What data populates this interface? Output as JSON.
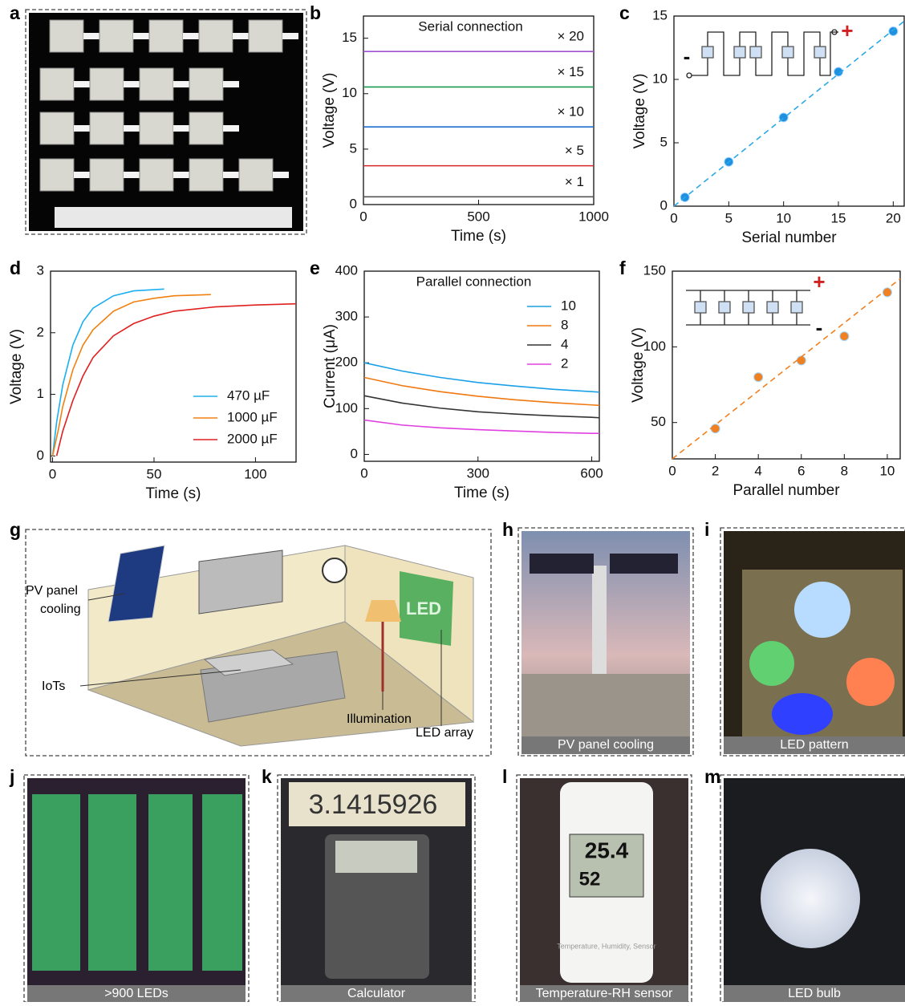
{
  "panel_labels": [
    "a",
    "b",
    "c",
    "d",
    "e",
    "f",
    "g",
    "h",
    "i",
    "j",
    "k",
    "l",
    "m"
  ],
  "chart_data": [
    {
      "type": "line",
      "title": "Serial connection",
      "x_label": "Time (s)",
      "y_label": "Voltage (V)",
      "x": [
        0,
        1000
      ],
      "xlim": [
        0,
        1000
      ],
      "ylim": [
        0,
        17
      ],
      "xticks": [
        0,
        500,
        1000
      ],
      "yticks": [
        0,
        5,
        10,
        15
      ],
      "legend": "inline",
      "series": [
        {
          "name": "× 1",
          "color": "#555555",
          "values": [
            0.7,
            0.7
          ]
        },
        {
          "name": "× 5",
          "color": "#d62728",
          "values": [
            3.5,
            3.5
          ]
        },
        {
          "name": "× 10",
          "color": "#1f6fd0",
          "values": [
            7.0,
            7.0
          ]
        },
        {
          "name": "× 15",
          "color": "#1a9a50",
          "values": [
            10.6,
            10.6
          ]
        },
        {
          "name": "× 20",
          "color": "#a050d0",
          "values": [
            13.8,
            13.8
          ]
        }
      ]
    },
    {
      "type": "scatter",
      "x_label": "Serial number",
      "y_label": "Voltage (V)",
      "xlim": [
        0,
        21
      ],
      "ylim": [
        0,
        15
      ],
      "xticks": [
        0,
        5,
        10,
        15,
        20
      ],
      "yticks": [
        0,
        5,
        10,
        15
      ],
      "plus_label": "+",
      "minus_label": "-",
      "series": [
        {
          "color": "#1e90e0",
          "x": [
            1,
            5,
            10,
            15,
            20
          ],
          "values": [
            0.7,
            3.5,
            7.0,
            10.6,
            13.8
          ]
        },
        {
          "color": "#2aa8e8",
          "dashed": true,
          "x": [
            0,
            21
          ],
          "values": [
            0,
            14.6
          ]
        }
      ]
    },
    {
      "type": "line",
      "x_label": "Time (s)",
      "y_label": "Voltage (V)",
      "xlim": [
        -1,
        120
      ],
      "ylim": [
        -0.1,
        3
      ],
      "xticks": [
        0,
        50,
        100
      ],
      "yticks": [
        0,
        1,
        2,
        3
      ],
      "legend": "lower right",
      "series": [
        {
          "name": "470 µF",
          "color": "#1ab0f0",
          "x": [
            0,
            2,
            5,
            10,
            15,
            20,
            30,
            40,
            55
          ],
          "values": [
            0,
            0.55,
            1.15,
            1.8,
            2.18,
            2.4,
            2.6,
            2.68,
            2.71
          ]
        },
        {
          "name": "1000 µF",
          "color": "#f08010",
          "x": [
            0,
            3,
            5,
            10,
            15,
            20,
            30,
            40,
            50,
            60,
            78
          ],
          "values": [
            0,
            0.45,
            0.8,
            1.4,
            1.8,
            2.05,
            2.35,
            2.5,
            2.56,
            2.6,
            2.62
          ]
        },
        {
          "name": "2000 µF",
          "color": "#e02020",
          "x": [
            2,
            5,
            10,
            15,
            20,
            30,
            40,
            50,
            60,
            80,
            100,
            120
          ],
          "values": [
            0,
            0.4,
            0.9,
            1.3,
            1.6,
            1.95,
            2.15,
            2.27,
            2.35,
            2.42,
            2.45,
            2.47
          ]
        }
      ]
    },
    {
      "type": "line",
      "title": "Parallel connection",
      "x_label": "Time (s)",
      "y_label": "Current (μA)",
      "xlim": [
        0,
        620
      ],
      "ylim": [
        -15,
        400
      ],
      "xticks": [
        0,
        300,
        600
      ],
      "yticks": [
        0,
        100,
        200,
        300,
        400
      ],
      "legend": "upper right",
      "series": [
        {
          "name": "10",
          "color": "#1aa0e8",
          "x": [
            0,
            100,
            200,
            300,
            400,
            500,
            600,
            620
          ],
          "values": [
            200,
            182,
            168,
            157,
            149,
            142,
            137,
            136
          ]
        },
        {
          "name": "8",
          "color": "#f07810",
          "x": [
            0,
            100,
            200,
            300,
            400,
            500,
            600,
            620
          ],
          "values": [
            168,
            150,
            137,
            127,
            119,
            113,
            108,
            107
          ]
        },
        {
          "name": "4",
          "color": "#333333",
          "x": [
            0,
            100,
            200,
            300,
            400,
            500,
            600,
            620
          ],
          "values": [
            128,
            112,
            101,
            93,
            88,
            84,
            81,
            80
          ]
        },
        {
          "name": "2",
          "color": "#e040e0",
          "x": [
            0,
            100,
            200,
            300,
            400,
            500,
            600,
            620
          ],
          "values": [
            75,
            64,
            58,
            54,
            51,
            48,
            46,
            46
          ]
        }
      ]
    },
    {
      "type": "scatter",
      "x_label": "Parallel number",
      "y_label": "Voltage (V)",
      "xlim": [
        0,
        10.6
      ],
      "ylim": [
        26,
        150
      ],
      "xticks": [
        0,
        2,
        4,
        6,
        8,
        10
      ],
      "yticks": [
        50,
        100,
        150
      ],
      "plus_label": "+",
      "minus_label": "-",
      "series": [
        {
          "color": "#f08020",
          "x": [
            2,
            4,
            6,
            8,
            10
          ],
          "values": [
            46,
            80,
            91,
            107,
            136
          ]
        },
        {
          "color": "#f08020",
          "dashed": true,
          "x": [
            0,
            10.6
          ],
          "values": [
            26,
            145
          ]
        }
      ]
    }
  ],
  "illustration": {
    "labels": [
      "PV panel",
      "cooling",
      "IoTs",
      "Illumination",
      "LED array"
    ],
    "screen_text": "LED"
  },
  "photo_captions": [
    "PV panel cooling",
    "LED pattern",
    ">900 LEDs",
    "Calculator",
    "Temperature-RH sensor",
    "LED bulb"
  ],
  "calculator_display": "3.1415926",
  "sensor": {
    "temperature": "25.4",
    "humidity": "52",
    "label": "Temperature, Humidity, Sensor"
  }
}
